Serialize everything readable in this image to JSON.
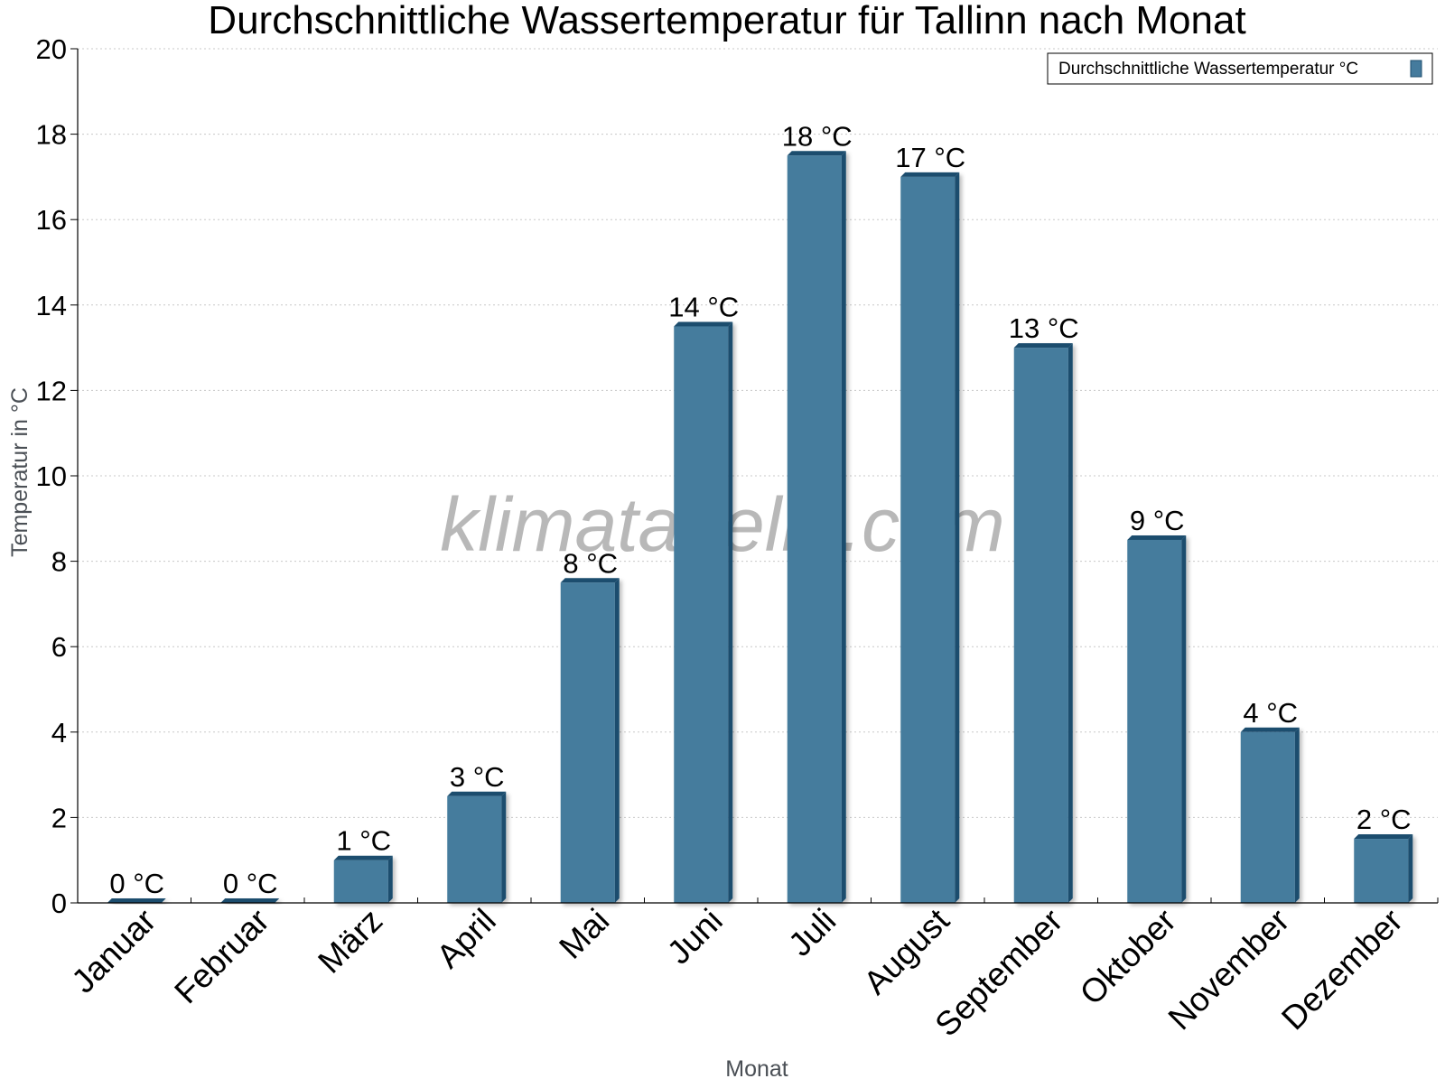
{
  "chart_data": {
    "type": "bar",
    "title": "Durchschnittliche Wassertemperatur für Tallinn nach Monat",
    "xlabel": "Monat",
    "ylabel": "Temperatur in °C",
    "ylim": [
      0,
      20
    ],
    "yticks": [
      0,
      2,
      4,
      6,
      8,
      10,
      12,
      14,
      16,
      18,
      20
    ],
    "grid": true,
    "legend_position": "top-right",
    "categories": [
      "Januar",
      "Februar",
      "März",
      "April",
      "Mai",
      "Juni",
      "Juli",
      "August",
      "September",
      "Oktober",
      "November",
      "Dezember"
    ],
    "series": [
      {
        "name": "Durchschnittliche Wassertemperatur °C",
        "values": [
          0,
          0,
          1,
          2.5,
          7.5,
          13.5,
          17.5,
          17,
          13,
          8.5,
          4,
          1.5
        ],
        "labels": [
          "0 °C",
          "0 °C",
          "1 °C",
          "3 °C",
          "8 °C",
          "14 °C",
          "18 °C",
          "17 °C",
          "13 °C",
          "9 °C",
          "4 °C",
          "2 °C"
        ],
        "color": "#457b9d",
        "edge_color": "#1d4e6e"
      }
    ],
    "watermark": "klimatabelle.com"
  }
}
